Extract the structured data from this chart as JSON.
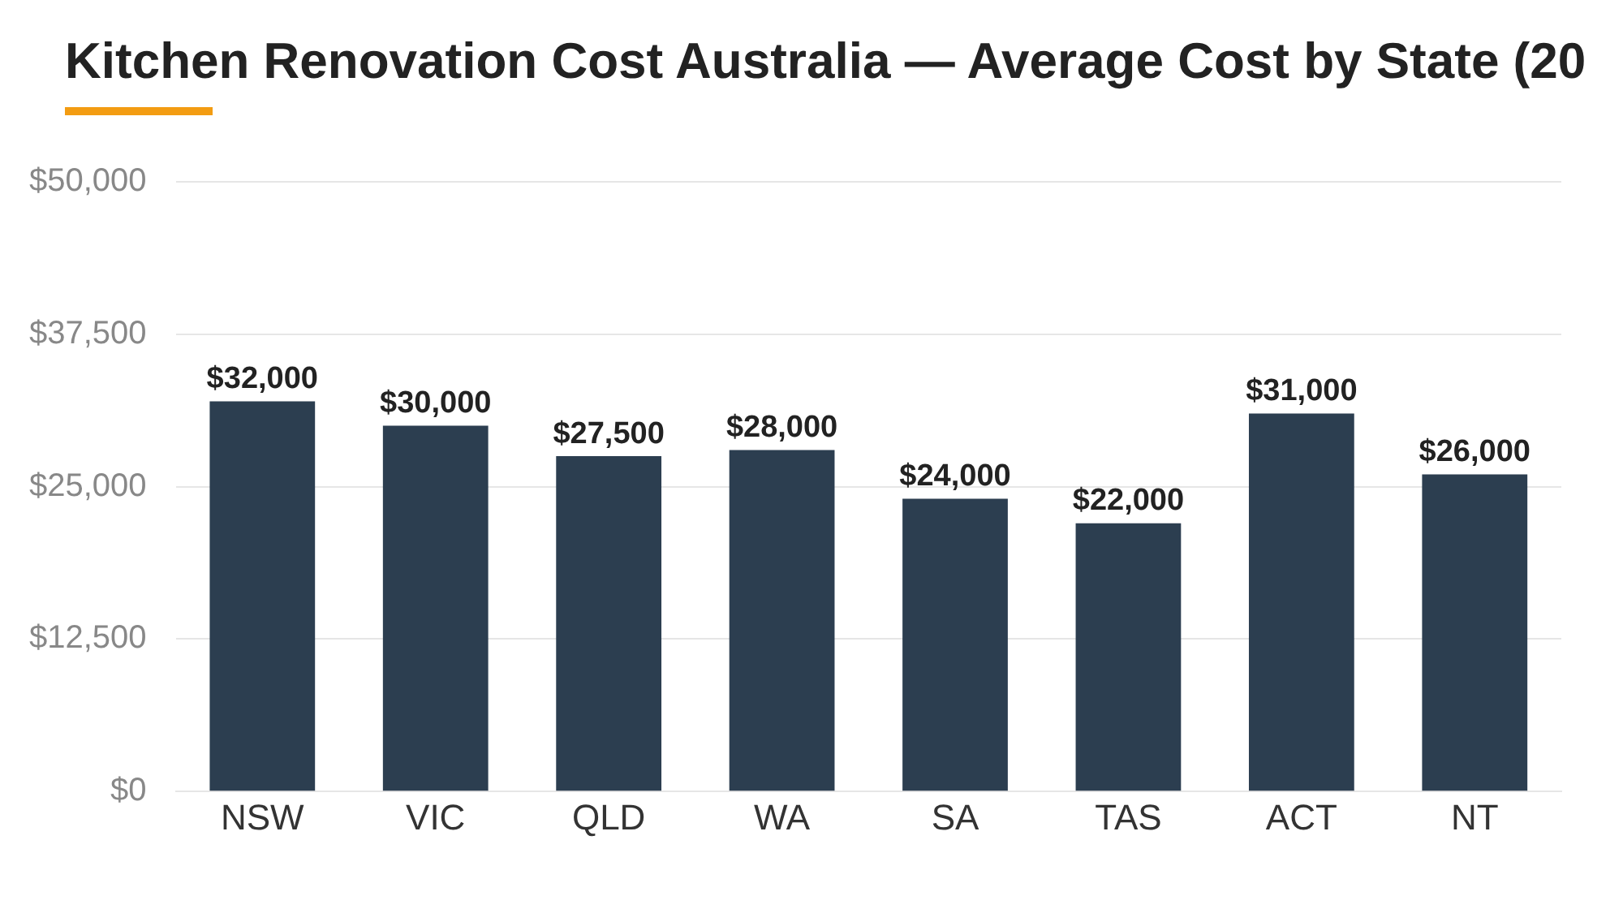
{
  "chart_data": {
    "type": "bar",
    "title": "Kitchen Renovation Cost Australia — Average Cost by State (20",
    "categories": [
      "NSW",
      "VIC",
      "QLD",
      "WA",
      "SA",
      "TAS",
      "ACT",
      "NT"
    ],
    "values": [
      32000,
      30000,
      27500,
      28000,
      24000,
      22000,
      31000,
      26000
    ],
    "value_labels": [
      "$32,000",
      "$30,000",
      "$27,500",
      "$28,000",
      "$24,000",
      "$22,000",
      "$31,000",
      "$26,000"
    ],
    "color": "#2c3e50",
    "ylim": [
      0,
      50000
    ],
    "yticks": [
      {
        "value": 0,
        "label": "$0"
      },
      {
        "value": 12500,
        "label": "$12,500"
      },
      {
        "value": 25000,
        "label": "$25,000"
      },
      {
        "value": 37500,
        "label": "$37,500"
      },
      {
        "value": 50000,
        "label": "$50,000"
      }
    ],
    "grid": "y",
    "legend": false
  }
}
